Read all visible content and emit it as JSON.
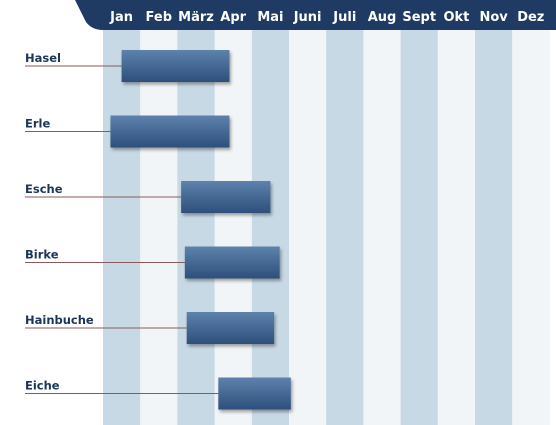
{
  "chart_data": {
    "type": "gantt",
    "title": "",
    "months": [
      "Jan",
      "Feb",
      "März",
      "Apr",
      "Mai",
      "Juni",
      "Juli",
      "Aug",
      "Sept",
      "Okt",
      "Nov",
      "Dez"
    ],
    "highlighted_months": [
      "Jan",
      "März",
      "Mai",
      "Juli",
      "Sept",
      "Nov"
    ],
    "series": [
      {
        "name": "Hasel",
        "start": 1.5,
        "end": 4.4
      },
      {
        "name": "Erle",
        "start": 1.2,
        "end": 4.4
      },
      {
        "name": "Esche",
        "start": 3.1,
        "end": 5.5
      },
      {
        "name": "Birke",
        "start": 3.2,
        "end": 5.75
      },
      {
        "name": "Hainbuche",
        "start": 3.25,
        "end": 5.6
      },
      {
        "name": "Eiche",
        "start": 4.1,
        "end": 6.05
      }
    ],
    "xlim": [
      1,
      13
    ],
    "grid": false,
    "legend": "none"
  },
  "colors": {
    "header": "#1f3b63",
    "band_dark": "#c8d9e6",
    "band_light": "#f2f5f8",
    "bar_top": "#5d82ac",
    "bar_bottom": "#2e4f7b",
    "label_text": "#1d3557"
  }
}
